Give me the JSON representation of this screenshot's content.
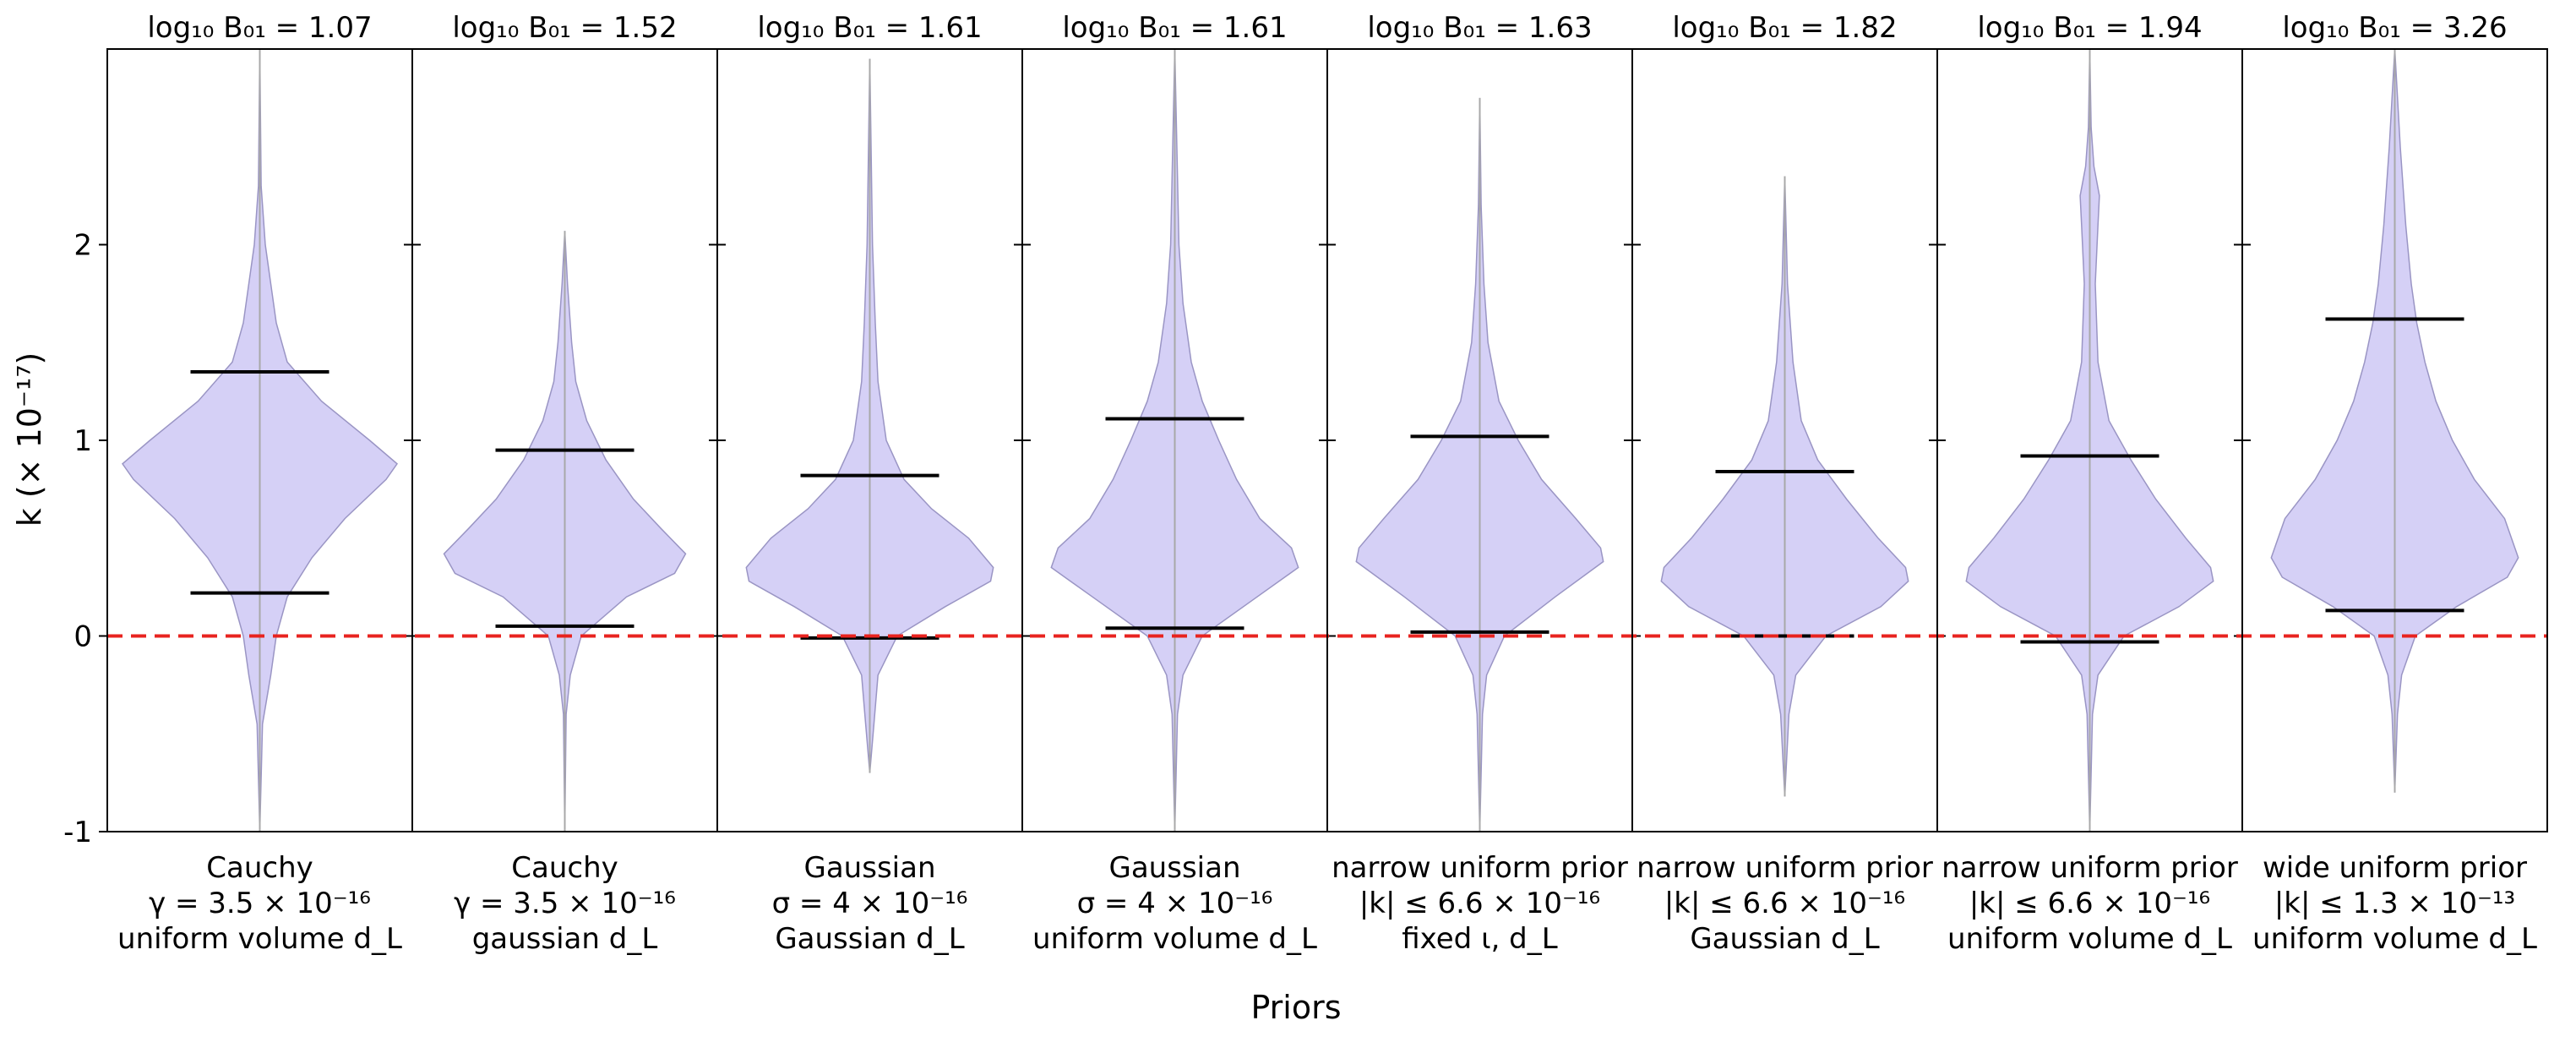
{
  "chart_data": {
    "type": "violin",
    "xlabel": "Priors",
    "ylabel": "k (× 10⁻¹⁷)",
    "ylim": [
      -1,
      3
    ],
    "yticks": [
      -1,
      0,
      1,
      2
    ],
    "reference_line": {
      "y": 0,
      "color": "#e8231f",
      "style": "dashed"
    },
    "violin_color": "#d5d0f6",
    "violin_edge_color": "#9a95c4",
    "series": [
      {
        "title": "log₁₀ B₀₁ = 1.07",
        "prior": [
          "Cauchy",
          "γ = 3.5 × 10⁻¹⁶",
          "uniform volume d_L"
        ],
        "interval": [
          0.22,
          1.35
        ],
        "range": [
          -1.0,
          3.0
        ],
        "profile": [
          [
            -1.0,
            0.0
          ],
          [
            -0.45,
            0.02
          ],
          [
            -0.2,
            0.08
          ],
          [
            0.0,
            0.12
          ],
          [
            0.2,
            0.2
          ],
          [
            0.4,
            0.38
          ],
          [
            0.6,
            0.62
          ],
          [
            0.8,
            0.92
          ],
          [
            0.88,
            1.0
          ],
          [
            1.0,
            0.8
          ],
          [
            1.2,
            0.45
          ],
          [
            1.4,
            0.2
          ],
          [
            1.6,
            0.12
          ],
          [
            1.8,
            0.08
          ],
          [
            2.0,
            0.04
          ],
          [
            2.3,
            0.01
          ],
          [
            3.0,
            0.0
          ]
        ]
      },
      {
        "title": "log₁₀ B₀₁ = 1.52",
        "prior": [
          "Cauchy",
          "γ = 3.5 × 10⁻¹⁶",
          "gaussian d_L"
        ],
        "interval": [
          0.05,
          0.95
        ],
        "range": [
          -1.0,
          2.07
        ],
        "profile": [
          [
            -1.0,
            0.0
          ],
          [
            -0.4,
            0.01
          ],
          [
            -0.2,
            0.04
          ],
          [
            0.0,
            0.12
          ],
          [
            0.2,
            0.45
          ],
          [
            0.32,
            0.8
          ],
          [
            0.42,
            0.88
          ],
          [
            0.55,
            0.7
          ],
          [
            0.7,
            0.5
          ],
          [
            0.9,
            0.3
          ],
          [
            1.1,
            0.16
          ],
          [
            1.3,
            0.08
          ],
          [
            1.5,
            0.05
          ],
          [
            1.8,
            0.02
          ],
          [
            2.07,
            0.0
          ]
        ]
      },
      {
        "title": "log₁₀ B₀₁ = 1.61",
        "prior": [
          "Gaussian",
          "σ = 4 × 10⁻¹⁶",
          "Gaussian d_L"
        ],
        "interval": [
          -0.01,
          0.82
        ],
        "range": [
          -0.7,
          2.95
        ],
        "profile": [
          [
            -0.7,
            0.0
          ],
          [
            -0.45,
            0.03
          ],
          [
            -0.2,
            0.06
          ],
          [
            0.0,
            0.2
          ],
          [
            0.15,
            0.55
          ],
          [
            0.28,
            0.88
          ],
          [
            0.35,
            0.9
          ],
          [
            0.5,
            0.72
          ],
          [
            0.65,
            0.45
          ],
          [
            0.8,
            0.25
          ],
          [
            1.0,
            0.12
          ],
          [
            1.3,
            0.06
          ],
          [
            1.6,
            0.04
          ],
          [
            2.0,
            0.02
          ],
          [
            2.95,
            0.0
          ]
        ]
      },
      {
        "title": "log₁₀ B₀₁ = 1.61",
        "prior": [
          "Gaussian",
          "σ = 4 × 10⁻¹⁶",
          "uniform volume d_L"
        ],
        "interval": [
          0.04,
          1.11
        ],
        "range": [
          -1.0,
          3.0
        ],
        "profile": [
          [
            -1.0,
            0.0
          ],
          [
            -0.4,
            0.02
          ],
          [
            -0.2,
            0.06
          ],
          [
            0.0,
            0.2
          ],
          [
            0.2,
            0.6
          ],
          [
            0.35,
            0.9
          ],
          [
            0.45,
            0.85
          ],
          [
            0.6,
            0.62
          ],
          [
            0.8,
            0.45
          ],
          [
            1.0,
            0.32
          ],
          [
            1.2,
            0.2
          ],
          [
            1.4,
            0.12
          ],
          [
            1.7,
            0.06
          ],
          [
            2.0,
            0.03
          ],
          [
            3.0,
            0.0
          ]
        ]
      },
      {
        "title": "log₁₀ B₀₁ = 1.63",
        "prior": [
          "narrow uniform prior",
          "|k| ≤ 6.6 × 10⁻¹⁶",
          "fixed ι,  d_L"
        ],
        "interval": [
          0.02,
          1.02
        ],
        "range": [
          -1.0,
          2.75
        ],
        "profile": [
          [
            -1.0,
            0.0
          ],
          [
            -0.4,
            0.02
          ],
          [
            -0.2,
            0.05
          ],
          [
            0.0,
            0.18
          ],
          [
            0.2,
            0.55
          ],
          [
            0.38,
            0.9
          ],
          [
            0.45,
            0.88
          ],
          [
            0.6,
            0.7
          ],
          [
            0.8,
            0.45
          ],
          [
            1.0,
            0.28
          ],
          [
            1.2,
            0.14
          ],
          [
            1.5,
            0.06
          ],
          [
            1.8,
            0.03
          ],
          [
            2.2,
            0.01
          ],
          [
            2.75,
            0.0
          ]
        ]
      },
      {
        "title": "log₁₀ B₀₁ = 1.82",
        "prior": [
          "narrow uniform prior",
          "|k| ≤ 6.6 × 10⁻¹⁶",
          "Gaussian d_L"
        ],
        "interval": [
          0.0,
          0.84
        ],
        "range": [
          -0.82,
          2.35
        ],
        "profile": [
          [
            -0.82,
            0.0
          ],
          [
            -0.4,
            0.03
          ],
          [
            -0.2,
            0.08
          ],
          [
            0.0,
            0.3
          ],
          [
            0.15,
            0.7
          ],
          [
            0.28,
            0.9
          ],
          [
            0.35,
            0.88
          ],
          [
            0.5,
            0.68
          ],
          [
            0.7,
            0.45
          ],
          [
            0.9,
            0.24
          ],
          [
            1.1,
            0.12
          ],
          [
            1.4,
            0.06
          ],
          [
            1.8,
            0.02
          ],
          [
            2.35,
            0.0
          ]
        ]
      },
      {
        "title": "log₁₀ B₀₁ = 1.94",
        "prior": [
          "narrow uniform prior",
          "|k| ≤ 6.6 × 10⁻¹⁶",
          "uniform volume d_L"
        ],
        "interval": [
          -0.03,
          0.92
        ],
        "range": [
          -1.0,
          3.0
        ],
        "profile": [
          [
            -1.0,
            0.0
          ],
          [
            -0.4,
            0.02
          ],
          [
            -0.2,
            0.06
          ],
          [
            0.0,
            0.25
          ],
          [
            0.15,
            0.65
          ],
          [
            0.28,
            0.9
          ],
          [
            0.35,
            0.88
          ],
          [
            0.5,
            0.7
          ],
          [
            0.7,
            0.48
          ],
          [
            0.9,
            0.3
          ],
          [
            1.1,
            0.14
          ],
          [
            1.4,
            0.06
          ],
          [
            1.8,
            0.04
          ],
          [
            2.1,
            0.06
          ],
          [
            2.25,
            0.07
          ],
          [
            2.4,
            0.03
          ],
          [
            2.6,
            0.01
          ],
          [
            3.0,
            0.0
          ]
        ]
      },
      {
        "title": "log₁₀ B₀₁ = 3.26",
        "prior": [
          "wide uniform prior",
          "|k| ≤ 1.3 × 10⁻¹³",
          "uniform volume d_L"
        ],
        "interval": [
          0.13,
          1.62
        ],
        "range": [
          -0.8,
          3.0
        ],
        "profile": [
          [
            -0.8,
            0.0
          ],
          [
            -0.4,
            0.02
          ],
          [
            -0.2,
            0.05
          ],
          [
            0.0,
            0.15
          ],
          [
            0.15,
            0.45
          ],
          [
            0.3,
            0.82
          ],
          [
            0.4,
            0.9
          ],
          [
            0.6,
            0.8
          ],
          [
            0.8,
            0.58
          ],
          [
            1.0,
            0.42
          ],
          [
            1.2,
            0.3
          ],
          [
            1.4,
            0.22
          ],
          [
            1.6,
            0.16
          ],
          [
            1.8,
            0.12
          ],
          [
            2.1,
            0.08
          ],
          [
            2.5,
            0.04
          ],
          [
            3.0,
            0.0
          ]
        ]
      }
    ]
  }
}
